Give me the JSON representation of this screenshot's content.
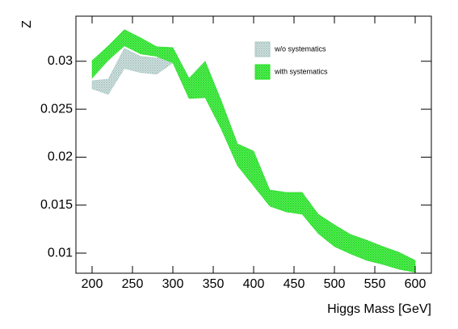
{
  "chart_data": {
    "type": "band",
    "x_label": "Higgs Mass [GeV]",
    "y_label": "Z",
    "x": [
      200,
      220,
      240,
      260,
      280,
      300,
      320,
      340,
      360,
      380,
      400,
      420,
      440,
      460,
      480,
      500,
      520,
      540,
      560,
      580,
      600
    ],
    "series": [
      {
        "name": "w/o systematics",
        "color": "#a9c6c2",
        "high": [
          0.02797,
          0.02814,
          0.03135,
          0.03051,
          0.03034,
          0.03143,
          0.02823,
          0.03,
          0.02587,
          0.02139,
          0.02063,
          0.01658,
          0.01633,
          0.01633,
          0.01405,
          0.01295,
          0.01194,
          0.01135,
          0.01068,
          0.01008,
          0.00924
        ],
        "low": [
          0.02713,
          0.02654,
          0.02924,
          0.02882,
          0.02865,
          0.02983,
          0.02612,
          0.0262,
          0.02291,
          0.01911,
          0.017,
          0.01489,
          0.0143,
          0.01405,
          0.01203,
          0.01068,
          0.00992,
          0.00924,
          0.00882,
          0.00831,
          0.008
        ]
      },
      {
        "name": "with systematics",
        "color": "#22e022",
        "high": [
          0.03008,
          0.0316,
          0.0333,
          0.03245,
          0.03152,
          0.03143,
          0.02823,
          0.03,
          0.02587,
          0.02139,
          0.02063,
          0.01658,
          0.01633,
          0.01633,
          0.01405,
          0.01295,
          0.01194,
          0.01135,
          0.01068,
          0.01008,
          0.00924
        ],
        "low": [
          0.02823,
          0.03008,
          0.0316,
          0.03076,
          0.03051,
          0.02983,
          0.02612,
          0.0262,
          0.02291,
          0.01911,
          0.017,
          0.01489,
          0.0143,
          0.01405,
          0.01203,
          0.01068,
          0.00992,
          0.00924,
          0.00882,
          0.00831,
          0.008
        ]
      }
    ],
    "xlim": [
      180,
      620
    ],
    "xticks": [
      200,
      250,
      300,
      350,
      400,
      450,
      500,
      550,
      600
    ],
    "ylim": [
      0.0079,
      0.0347
    ],
    "yticks": [
      0.01,
      0.015,
      0.02,
      0.025,
      0.03
    ],
    "legend": "top-right",
    "grid": false
  }
}
